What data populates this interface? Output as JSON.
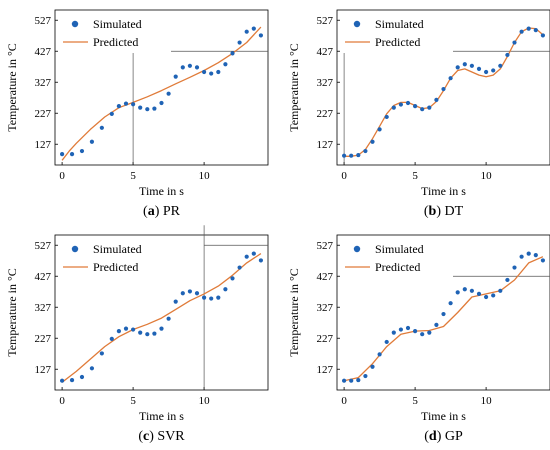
{
  "legend": {
    "simulated": "Simulated",
    "predicted": "Predicted"
  },
  "axes": {
    "xlabel": "Time in s",
    "ylabel": "Temperature in °C"
  },
  "colors": {
    "simulated": "#1f63b5",
    "predicted": "#e07b39",
    "marker_line": "#555555"
  },
  "chart_data": [
    {
      "type": "scatter+line",
      "caption_letter": "(a)",
      "caption_name": "PR",
      "xlabel": "Time in s",
      "ylabel": "Temperature in °C",
      "xlim": [
        -0.5,
        14.5
      ],
      "ylim": [
        60,
        560
      ],
      "xticks": [
        0,
        5,
        10
      ],
      "yticks": [
        127,
        227,
        327,
        427,
        527
      ],
      "simulated_x": [
        0,
        0.7,
        1.4,
        2.1,
        2.8,
        3.5,
        4.0,
        4.5,
        5.0,
        5.5,
        6.0,
        6.5,
        7.0,
        7.5,
        8.0,
        8.5,
        9.0,
        9.5,
        10.0,
        10.5,
        11.0,
        11.5,
        12.0,
        12.5,
        13.0,
        13.5,
        14.0
      ],
      "simulated_y": [
        95,
        95,
        105,
        135,
        180,
        225,
        250,
        258,
        256,
        245,
        240,
        242,
        260,
        290,
        345,
        375,
        380,
        375,
        360,
        355,
        360,
        385,
        420,
        455,
        490,
        500,
        478
      ],
      "predicted_x": [
        0,
        0.5,
        1,
        2,
        3,
        4,
        5,
        6,
        7,
        8,
        9,
        10,
        11,
        12,
        13,
        14
      ],
      "predicted_y": [
        75,
        105,
        130,
        175,
        215,
        245,
        262,
        280,
        300,
        322,
        343,
        365,
        390,
        420,
        455,
        505
      ],
      "marker_lines": {
        "x": 5,
        "y": 427
      }
    },
    {
      "type": "scatter+line",
      "caption_letter": "(b)",
      "caption_name": "DT",
      "xlabel": "Time in s",
      "ylabel": "Temperature in °C",
      "xlim": [
        -0.5,
        14.5
      ],
      "ylim": [
        60,
        560
      ],
      "xticks": [
        0,
        5,
        10
      ],
      "yticks": [
        127,
        227,
        327,
        427,
        527
      ],
      "simulated_x": [
        0,
        0.5,
        1.0,
        1.5,
        2.0,
        2.5,
        3.0,
        3.5,
        4.0,
        4.5,
        5.0,
        5.5,
        6.0,
        6.5,
        7.0,
        7.5,
        8.0,
        8.5,
        9.0,
        9.5,
        10.0,
        10.5,
        11.0,
        11.5,
        12.0,
        12.5,
        13.0,
        13.5,
        14.0
      ],
      "simulated_y": [
        90,
        90,
        92,
        105,
        135,
        175,
        215,
        245,
        255,
        260,
        250,
        240,
        245,
        270,
        305,
        340,
        375,
        385,
        380,
        370,
        360,
        365,
        380,
        415,
        455,
        490,
        500,
        495,
        478
      ],
      "predicted_x": [
        0,
        0.5,
        1.0,
        1.5,
        2.0,
        2.5,
        3.0,
        3.5,
        4.0,
        4.5,
        5.0,
        5.5,
        6.0,
        6.5,
        7.0,
        7.5,
        8.0,
        8.5,
        9.0,
        9.5,
        10.0,
        10.5,
        11.0,
        11.5,
        12.0,
        12.5,
        13.0,
        13.5,
        14.0
      ],
      "predicted_y": [
        88,
        88,
        92,
        110,
        145,
        185,
        225,
        252,
        262,
        262,
        252,
        242,
        245,
        265,
        300,
        340,
        365,
        370,
        360,
        350,
        345,
        350,
        370,
        410,
        455,
        490,
        502,
        500,
        480
      ],
      "marker_lines": {
        "x": 0,
        "y": 427
      }
    },
    {
      "type": "scatter+line",
      "caption_letter": "(c)",
      "caption_name": "SVR",
      "xlabel": "Time in s",
      "ylabel": "Temperature in °C",
      "xlim": [
        -0.5,
        14.5
      ],
      "ylim": [
        60,
        560
      ],
      "xticks": [
        0,
        5,
        10
      ],
      "yticks": [
        127,
        227,
        327,
        427,
        527
      ],
      "simulated_x": [
        0,
        0.7,
        1.4,
        2.1,
        2.8,
        3.5,
        4.0,
        4.5,
        5.0,
        5.5,
        6.0,
        6.5,
        7.0,
        7.5,
        8.0,
        8.5,
        9.0,
        9.5,
        10.0,
        10.5,
        11.0,
        11.5,
        12.0,
        12.5,
        13.0,
        13.5,
        14.0
      ],
      "simulated_y": [
        90,
        92,
        102,
        130,
        178,
        225,
        250,
        258,
        255,
        245,
        240,
        242,
        258,
        290,
        345,
        372,
        378,
        372,
        358,
        355,
        358,
        385,
        420,
        455,
        490,
        500,
        478
      ],
      "predicted_x": [
        0,
        1,
        2,
        3,
        4,
        5,
        6,
        7,
        8,
        9,
        10,
        11,
        12,
        13,
        14
      ],
      "predicted_y": [
        85,
        120,
        160,
        200,
        232,
        255,
        272,
        292,
        320,
        348,
        370,
        395,
        430,
        470,
        500
      ],
      "marker_lines": {
        "x": 10,
        "y": 527
      }
    },
    {
      "type": "scatter+line",
      "caption_letter": "(d)",
      "caption_name": "GP",
      "xlabel": "Time in s",
      "ylabel": "Temperature in °C",
      "xlim": [
        -0.5,
        14.5
      ],
      "ylim": [
        60,
        560
      ],
      "xticks": [
        0,
        5,
        10
      ],
      "yticks": [
        127,
        227,
        327,
        427,
        527
      ],
      "simulated_x": [
        0,
        0.5,
        1.0,
        1.5,
        2.0,
        2.5,
        3.0,
        3.5,
        4.0,
        4.5,
        5.0,
        5.5,
        6.0,
        6.5,
        7.0,
        7.5,
        8.0,
        8.5,
        9.0,
        9.5,
        10.0,
        10.5,
        11.0,
        11.5,
        12.0,
        12.5,
        13.0,
        13.5,
        14.0
      ],
      "simulated_y": [
        90,
        90,
        92,
        105,
        135,
        175,
        215,
        245,
        255,
        260,
        250,
        240,
        245,
        270,
        305,
        340,
        375,
        385,
        380,
        370,
        360,
        365,
        380,
        415,
        455,
        490,
        500,
        495,
        478
      ],
      "predicted_x": [
        0,
        1,
        2,
        3,
        4,
        5,
        6,
        7,
        8,
        9,
        10,
        11,
        12,
        13,
        14
      ],
      "predicted_y": [
        90,
        100,
        145,
        200,
        240,
        250,
        252,
        265,
        310,
        360,
        370,
        380,
        415,
        470,
        490
      ],
      "marker_lines": {
        "x": null,
        "y": 427
      }
    }
  ]
}
